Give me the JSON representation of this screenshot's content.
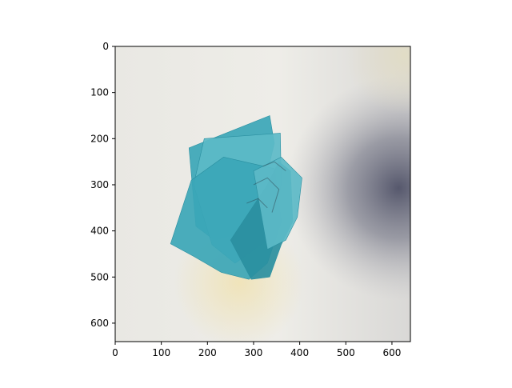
{
  "chart_data": {
    "type": "image",
    "title": "",
    "xlabel": "",
    "ylabel": "",
    "xlim": [
      0,
      640
    ],
    "ylim": [
      640,
      0
    ],
    "xticks": [
      0,
      100,
      200,
      300,
      400,
      500,
      600
    ],
    "yticks": [
      0,
      100,
      200,
      300,
      400,
      500,
      600
    ],
    "grid": false,
    "image": {
      "description_colors": {
        "paper": "#e9e8e3",
        "paper_light": "#f1f0ec",
        "shadow": "#5d5f73",
        "stain": "#efe3b8",
        "teal": "#3ba6b7",
        "teal_dark": "#2a8fa0",
        "teal_light": "#5cbac7",
        "ink": "#2a3a44"
      },
      "sticky_notes": [
        {
          "points": [
            [
              160,
              220
            ],
            [
              335,
              150
            ],
            [
              345,
              210
            ],
            [
              300,
              400
            ],
            [
              215,
              420
            ],
            [
              175,
              390
            ]
          ]
        },
        {
          "points": [
            [
              193,
              200
            ],
            [
              358,
              188
            ],
            [
              360,
              300
            ],
            [
              330,
              420
            ],
            [
              260,
              470
            ],
            [
              210,
              430
            ],
            [
              170,
              300
            ]
          ]
        },
        {
          "points": [
            [
              120,
              428
            ],
            [
              165,
              290
            ],
            [
              235,
              240
            ],
            [
              345,
              265
            ],
            [
              360,
              380
            ],
            [
              330,
              470
            ],
            [
              290,
              505
            ],
            [
              230,
              490
            ],
            [
              170,
              455
            ]
          ]
        },
        {
          "points": [
            [
              250,
              420
            ],
            [
              330,
              300
            ],
            [
              355,
              250
            ],
            [
              380,
              270
            ],
            [
              385,
              380
            ],
            [
              360,
              430
            ],
            [
              335,
              500
            ],
            [
              295,
              505
            ]
          ]
        },
        {
          "points": [
            [
              300,
              270
            ],
            [
              360,
              240
            ],
            [
              405,
              285
            ],
            [
              395,
              370
            ],
            [
              370,
              420
            ],
            [
              330,
              440
            ]
          ]
        }
      ]
    }
  }
}
